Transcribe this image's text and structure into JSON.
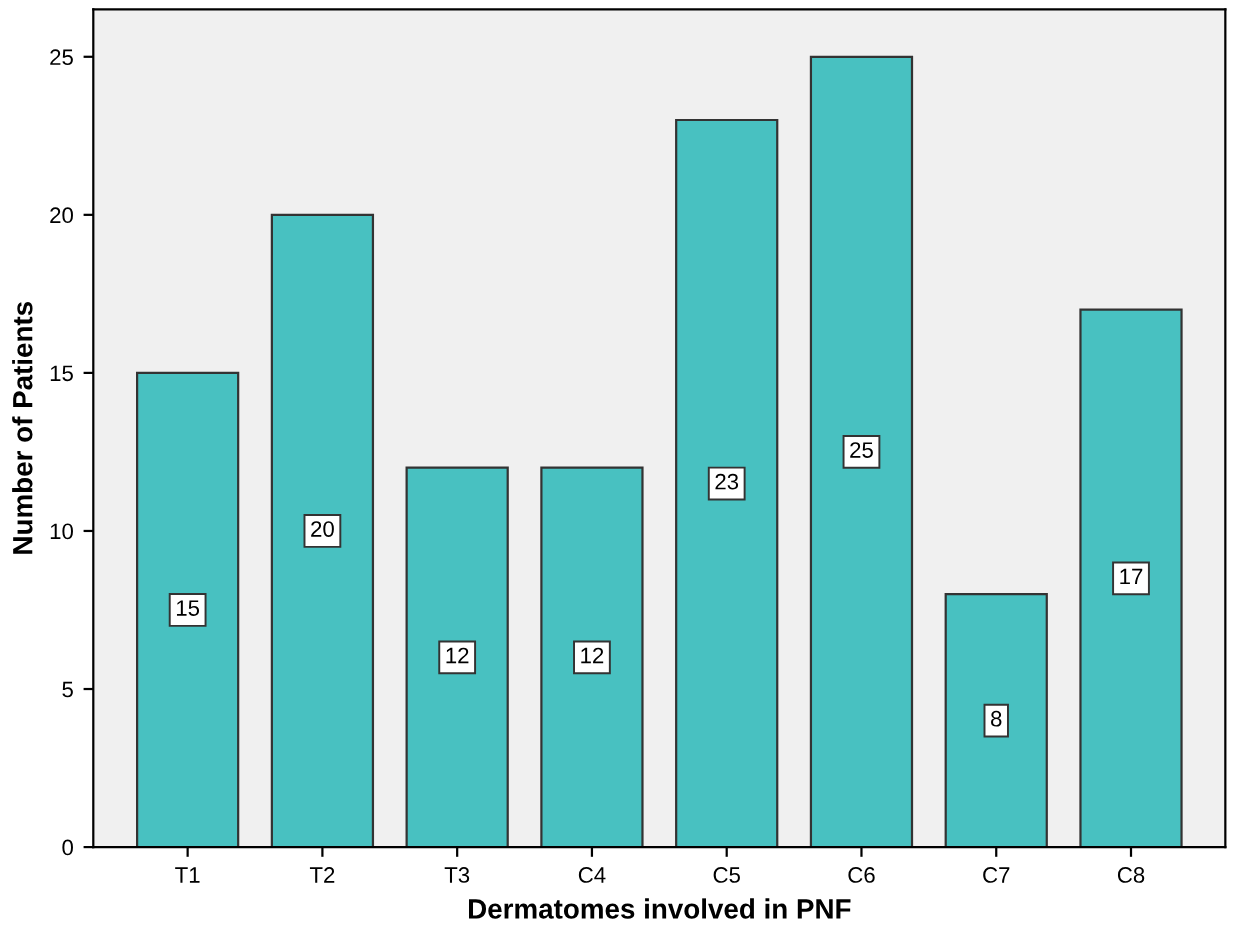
{
  "chart_data": {
    "type": "bar",
    "xlabel": "Dermatomes involved in PNF",
    "ylabel": "Number of Patients",
    "categories": [
      "T1",
      "T2",
      "T3",
      "C4",
      "C5",
      "C6",
      "C7",
      "C8"
    ],
    "values": [
      15,
      20,
      12,
      12,
      23,
      25,
      8,
      17
    ],
    "color": "#48c1c1",
    "ylim": [
      0,
      26.5
    ],
    "yticks": [
      0,
      5,
      10,
      15,
      20,
      25
    ],
    "grid": false,
    "data_labels": true
  }
}
